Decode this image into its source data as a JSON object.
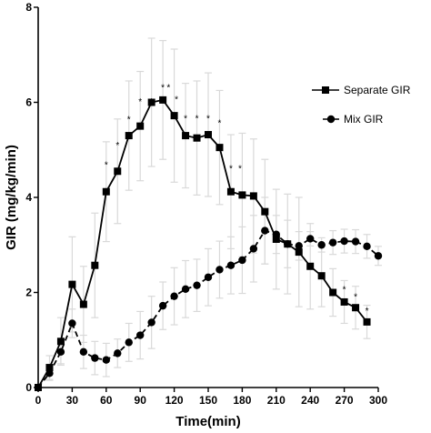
{
  "chart_data": {
    "type": "line",
    "title": "",
    "xlabel": "Time(min)",
    "ylabel": "GIR (mg/kg/min)",
    "xlim": [
      0,
      300
    ],
    "ylim": [
      0,
      8
    ],
    "x_ticks": [
      0,
      30,
      60,
      90,
      120,
      150,
      180,
      210,
      240,
      270,
      300
    ],
    "y_ticks": [
      0,
      2,
      4,
      6,
      8
    ],
    "grid": false,
    "legend_position": "right",
    "error_bar_color": "#d9d9d9",
    "line_color": "#000000",
    "series": [
      {
        "name": "Separate GIR",
        "marker": "square",
        "line_style": "solid",
        "x": [
          0,
          10,
          20,
          30,
          40,
          50,
          60,
          70,
          80,
          90,
          100,
          110,
          120,
          130,
          140,
          150,
          160,
          170,
          180,
          190,
          200,
          210,
          220,
          230,
          240,
          250,
          260,
          270,
          280,
          290
        ],
        "y": [
          0,
          0.42,
          0.97,
          2.17,
          1.75,
          2.57,
          4.12,
          4.55,
          5.3,
          5.5,
          6.0,
          6.05,
          5.72,
          5.3,
          5.25,
          5.32,
          5.05,
          4.12,
          4.05,
          4.03,
          3.7,
          3.12,
          3.02,
          2.85,
          2.55,
          2.35,
          2.0,
          1.8,
          1.68,
          1.38
        ],
        "err": [
          0,
          0.25,
          0.5,
          1.0,
          0.8,
          1.1,
          1.05,
          1.1,
          1.15,
          1.15,
          1.35,
          1.25,
          1.4,
          1.1,
          1.2,
          1.3,
          1.2,
          1.2,
          1.3,
          1.2,
          1.1,
          1.05,
          1.05,
          1.15,
          0.9,
          0.65,
          0.5,
          0.45,
          0.45,
          0.35
        ]
      },
      {
        "name": "Mix GIR",
        "marker": "circle",
        "line_style": "dashed",
        "x": [
          0,
          10,
          20,
          30,
          40,
          50,
          60,
          70,
          80,
          90,
          100,
          110,
          120,
          130,
          140,
          150,
          160,
          170,
          180,
          190,
          200,
          210,
          220,
          230,
          240,
          250,
          260,
          270,
          280,
          290,
          300
        ],
        "y": [
          0,
          0.3,
          0.75,
          1.35,
          0.75,
          0.62,
          0.58,
          0.72,
          0.95,
          1.1,
          1.37,
          1.72,
          1.92,
          2.07,
          2.15,
          2.32,
          2.48,
          2.57,
          2.68,
          2.92,
          3.3,
          3.22,
          3.02,
          2.98,
          3.13,
          3.0,
          3.05,
          3.08,
          3.07,
          2.97,
          2.77
        ],
        "err": [
          0,
          0.15,
          0.25,
          0.3,
          0.35,
          0.35,
          0.35,
          0.3,
          0.4,
          0.5,
          0.55,
          0.5,
          0.6,
          0.6,
          0.55,
          0.6,
          0.6,
          0.6,
          0.7,
          0.7,
          0.7,
          0.4,
          0.5,
          0.3,
          0.15,
          0.15,
          0.25,
          0.25,
          0.25,
          0.25,
          0.2
        ]
      }
    ],
    "annotations": [
      {
        "text": "*",
        "x": 60,
        "y": 4.62
      },
      {
        "text": "*",
        "x": 70,
        "y": 5.03
      },
      {
        "text": "*",
        "x": 80,
        "y": 5.58
      },
      {
        "text": "*",
        "x": 90,
        "y": 5.95
      },
      {
        "text": "*",
        "x": 100,
        "y": 5.95
      },
      {
        "text": "*",
        "x": 110,
        "y": 6.25
      },
      {
        "text": "*",
        "x": 115,
        "y": 6.25
      },
      {
        "text": "*",
        "x": 122,
        "y": 6.0
      },
      {
        "text": "*",
        "x": 130,
        "y": 5.6
      },
      {
        "text": "*",
        "x": 140,
        "y": 5.6
      },
      {
        "text": "*",
        "x": 150,
        "y": 5.6
      },
      {
        "text": "*",
        "x": 160,
        "y": 5.5
      },
      {
        "text": "*",
        "x": 170,
        "y": 4.55
      },
      {
        "text": "*",
        "x": 178,
        "y": 4.55
      },
      {
        "text": "*",
        "x": 270,
        "y": 2.0
      },
      {
        "text": "*",
        "x": 280,
        "y": 1.85
      },
      {
        "text": "*",
        "x": 290,
        "y": 1.55
      }
    ]
  }
}
